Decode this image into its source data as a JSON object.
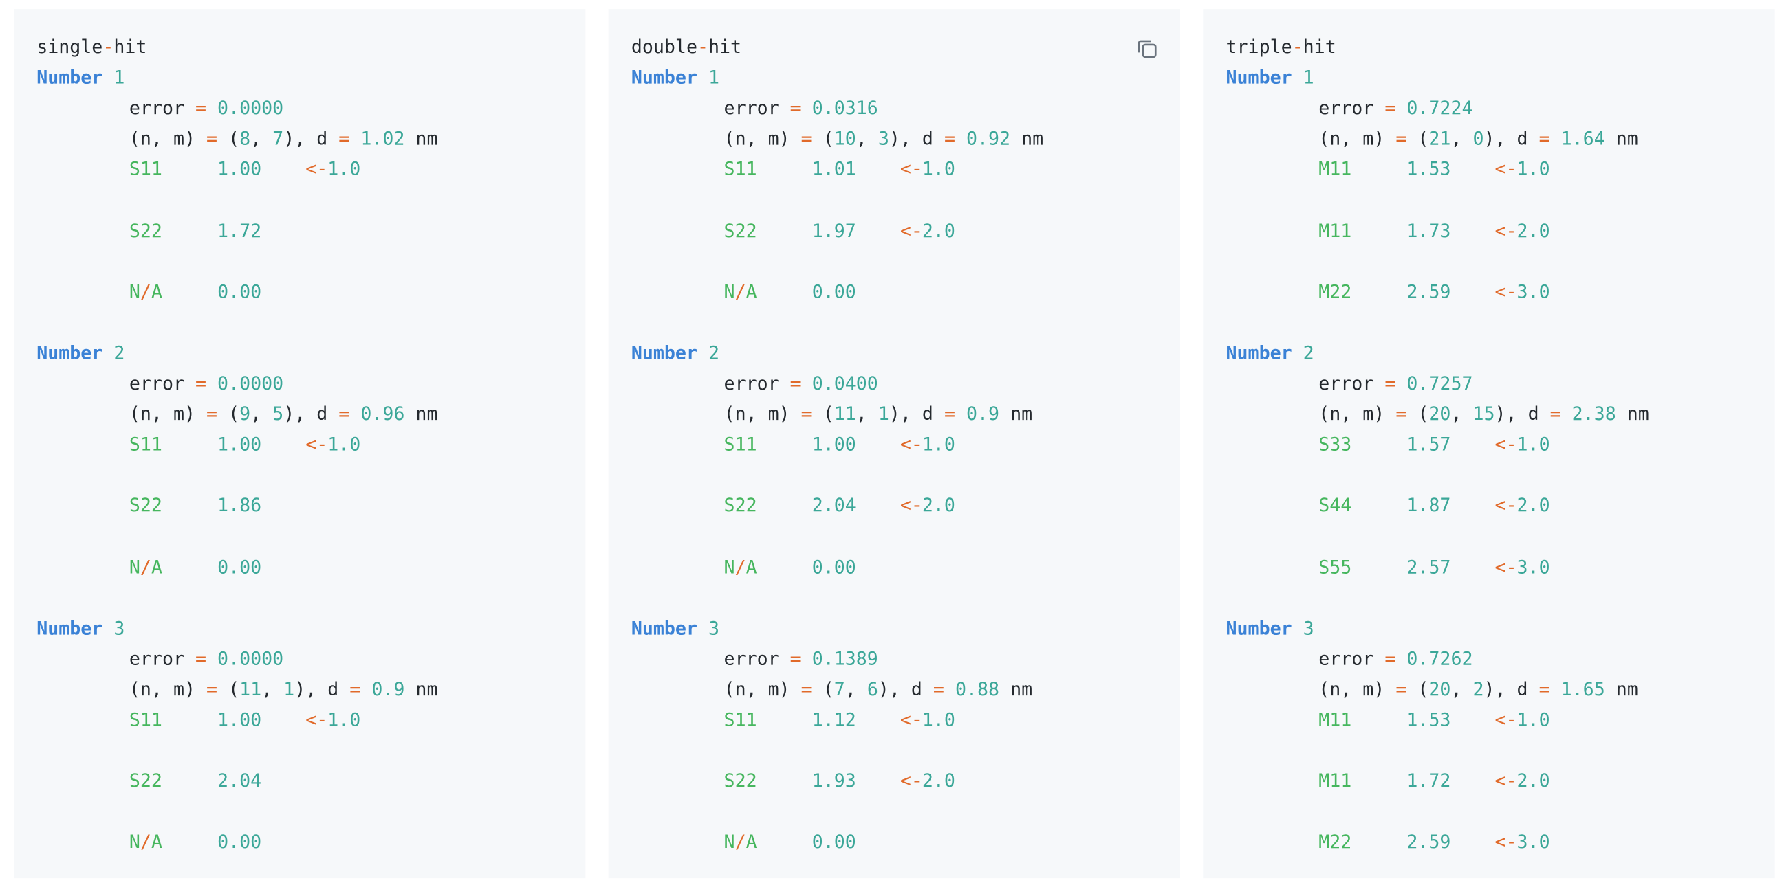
{
  "copy_icon": "copy-icon",
  "colors": {
    "keyword": "#3b82d6",
    "number": "#3ba798",
    "operator": "#e16a2a",
    "band_label": "#46b65e",
    "text": "#24292e",
    "panel_bg": "#f6f8fa"
  },
  "panels": [
    {
      "title_a": "single",
      "title_b": "hit",
      "entries": [
        {
          "keyword": "Number",
          "index": "1",
          "error": "0.0000",
          "n": "8",
          "m": "7",
          "d": "1.02",
          "unit": "nm",
          "rows": [
            {
              "label": "S11",
              "value": "1.00",
              "target": "1.0"
            },
            {
              "label": "S22",
              "value": "1.72",
              "target": ""
            },
            {
              "label": "N/A",
              "value": "0.00",
              "target": ""
            }
          ]
        },
        {
          "keyword": "Number",
          "index": "2",
          "error": "0.0000",
          "n": "9",
          "m": "5",
          "d": "0.96",
          "unit": "nm",
          "rows": [
            {
              "label": "S11",
              "value": "1.00",
              "target": "1.0"
            },
            {
              "label": "S22",
              "value": "1.86",
              "target": ""
            },
            {
              "label": "N/A",
              "value": "0.00",
              "target": ""
            }
          ]
        },
        {
          "keyword": "Number",
          "index": "3",
          "error": "0.0000",
          "n": "11",
          "m": "1",
          "d": "0.9",
          "unit": "nm",
          "rows": [
            {
              "label": "S11",
              "value": "1.00",
              "target": "1.0"
            },
            {
              "label": "S22",
              "value": "2.04",
              "target": ""
            },
            {
              "label": "N/A",
              "value": "0.00",
              "target": ""
            }
          ]
        }
      ]
    },
    {
      "title_a": "double",
      "title_b": "hit",
      "entries": [
        {
          "keyword": "Number",
          "index": "1",
          "error": "0.0316",
          "n": "10",
          "m": "3",
          "d": "0.92",
          "unit": "nm",
          "rows": [
            {
              "label": "S11",
              "value": "1.01",
              "target": "1.0"
            },
            {
              "label": "S22",
              "value": "1.97",
              "target": "2.0"
            },
            {
              "label": "N/A",
              "value": "0.00",
              "target": ""
            }
          ]
        },
        {
          "keyword": "Number",
          "index": "2",
          "error": "0.0400",
          "n": "11",
          "m": "1",
          "d": "0.9",
          "unit": "nm",
          "rows": [
            {
              "label": "S11",
              "value": "1.00",
              "target": "1.0"
            },
            {
              "label": "S22",
              "value": "2.04",
              "target": "2.0"
            },
            {
              "label": "N/A",
              "value": "0.00",
              "target": ""
            }
          ]
        },
        {
          "keyword": "Number",
          "index": "3",
          "error": "0.1389",
          "n": "7",
          "m": "6",
          "d": "0.88",
          "unit": "nm",
          "rows": [
            {
              "label": "S11",
              "value": "1.12",
              "target": "1.0"
            },
            {
              "label": "S22",
              "value": "1.93",
              "target": "2.0"
            },
            {
              "label": "N/A",
              "value": "0.00",
              "target": ""
            }
          ]
        }
      ]
    },
    {
      "title_a": "triple",
      "title_b": "hit",
      "entries": [
        {
          "keyword": "Number",
          "index": "1",
          "error": "0.7224",
          "n": "21",
          "m": "0",
          "d": "1.64",
          "unit": "nm",
          "rows": [
            {
              "label": "M11",
              "value": "1.53",
              "target": "1.0"
            },
            {
              "label": "M11",
              "value": "1.73",
              "target": "2.0"
            },
            {
              "label": "M22",
              "value": "2.59",
              "target": "3.0"
            }
          ]
        },
        {
          "keyword": "Number",
          "index": "2",
          "error": "0.7257",
          "n": "20",
          "m": "15",
          "d": "2.38",
          "unit": "nm",
          "rows": [
            {
              "label": "S33",
              "value": "1.57",
              "target": "1.0"
            },
            {
              "label": "S44",
              "value": "1.87",
              "target": "2.0"
            },
            {
              "label": "S55",
              "value": "2.57",
              "target": "3.0"
            }
          ]
        },
        {
          "keyword": "Number",
          "index": "3",
          "error": "0.7262",
          "n": "20",
          "m": "2",
          "d": "1.65",
          "unit": "nm",
          "rows": [
            {
              "label": "M11",
              "value": "1.53",
              "target": "1.0"
            },
            {
              "label": "M11",
              "value": "1.72",
              "target": "2.0"
            },
            {
              "label": "M22",
              "value": "2.59",
              "target": "3.0"
            }
          ]
        }
      ]
    }
  ]
}
